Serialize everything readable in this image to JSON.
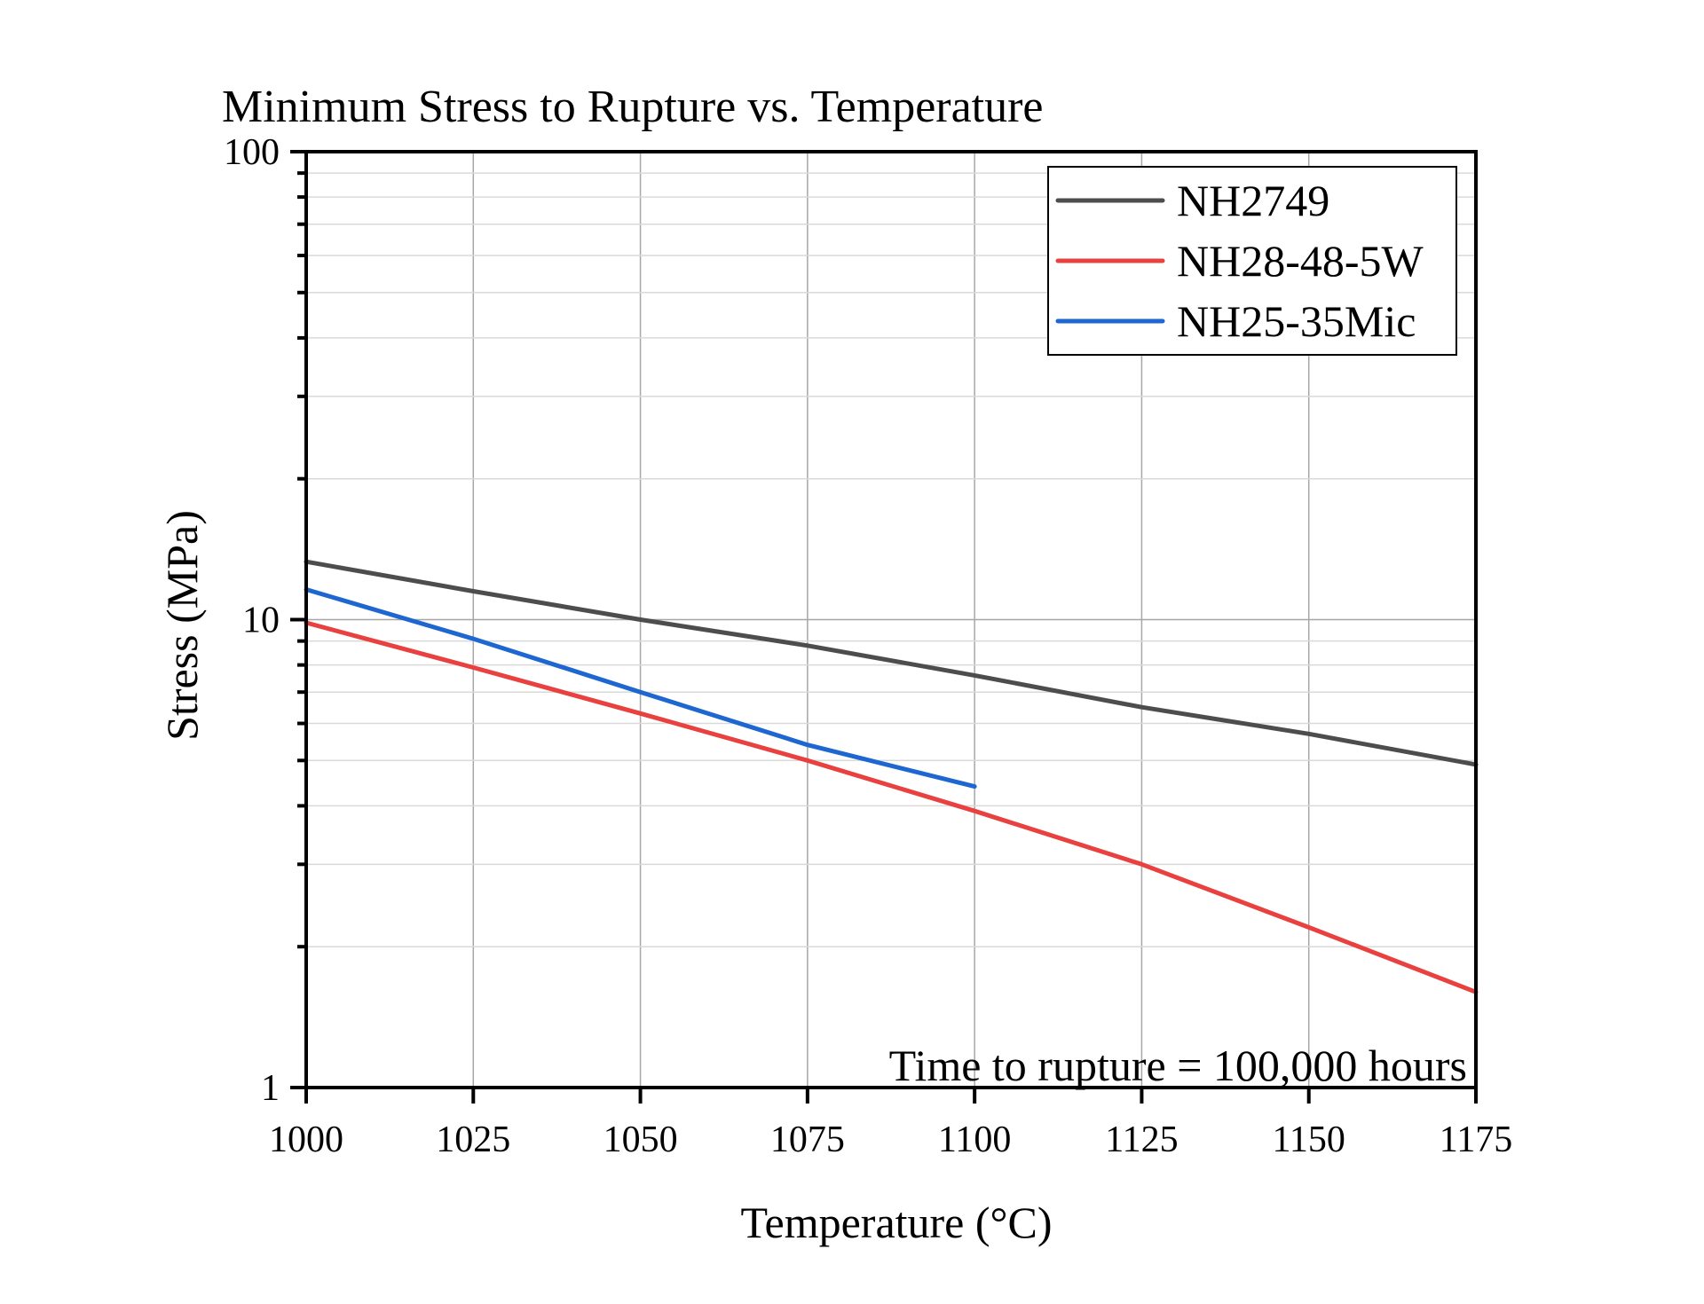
{
  "chart_data": {
    "type": "line",
    "title": "Minimum Stress to Rupture vs. Temperature",
    "xlabel": "Temperature (°C)",
    "ylabel": "Stress (MPa)",
    "xlim": [
      1000,
      1175
    ],
    "ylim": [
      1,
      100
    ],
    "yscale": "log",
    "x_ticks": [
      1000,
      1025,
      1050,
      1075,
      1100,
      1125,
      1150,
      1175
    ],
    "x_tick_labels": [
      "1000",
      "1025",
      "1050",
      "1075",
      "1100",
      "1125",
      "1150",
      "1175"
    ],
    "y_ticks": [
      1,
      10,
      100
    ],
    "y_tick_labels": [
      "1",
      "10",
      "100"
    ],
    "grid": true,
    "legend_position": "top-right",
    "annotation": "Time to rupture = 100,000 hours",
    "series": [
      {
        "name": "NH2749",
        "color": "#4d4d4d",
        "x": [
          1000,
          1025,
          1050,
          1075,
          1100,
          1125,
          1150,
          1175
        ],
        "values": [
          13.3,
          11.5,
          10.0,
          8.8,
          7.6,
          6.5,
          5.7,
          4.9
        ]
      },
      {
        "name": "NH28-48-5W",
        "color": "#e8413f",
        "x": [
          1000,
          1025,
          1050,
          1075,
          1100,
          1125,
          1150,
          1175
        ],
        "values": [
          9.85,
          7.9,
          6.3,
          5.0,
          3.9,
          3.0,
          2.2,
          1.6
        ]
      },
      {
        "name": "NH25-35Mic",
        "color": "#1e66d0",
        "x": [
          1000,
          1025,
          1050,
          1075,
          1100
        ],
        "values": [
          11.6,
          9.1,
          7.0,
          5.4,
          4.4
        ]
      }
    ]
  }
}
